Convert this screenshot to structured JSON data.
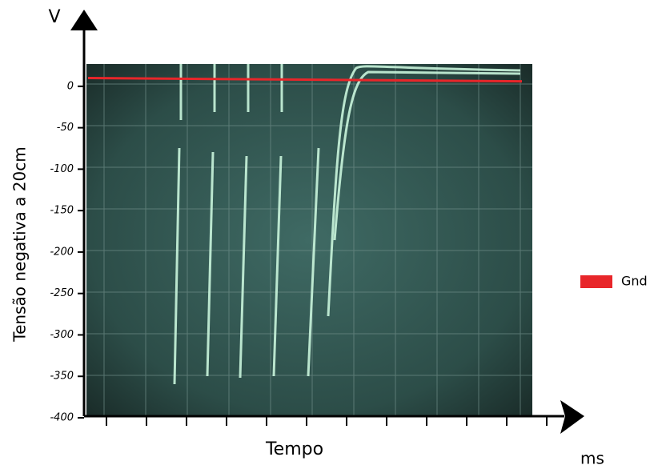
{
  "chart_data": {
    "type": "line",
    "y_label": "Tensão negativa a 20cm",
    "y_unit": "V",
    "x_label": "Tempo",
    "x_unit": "ms",
    "ylim": [
      -400,
      80
    ],
    "yticks": [
      0,
      -50,
      -100,
      -150,
      -200,
      -250,
      -300,
      -350,
      -400
    ],
    "series": [
      {
        "name": "Gnd",
        "color": "#e8262a",
        "values": [
          10,
          6
        ]
      }
    ],
    "legend": "right"
  }
}
